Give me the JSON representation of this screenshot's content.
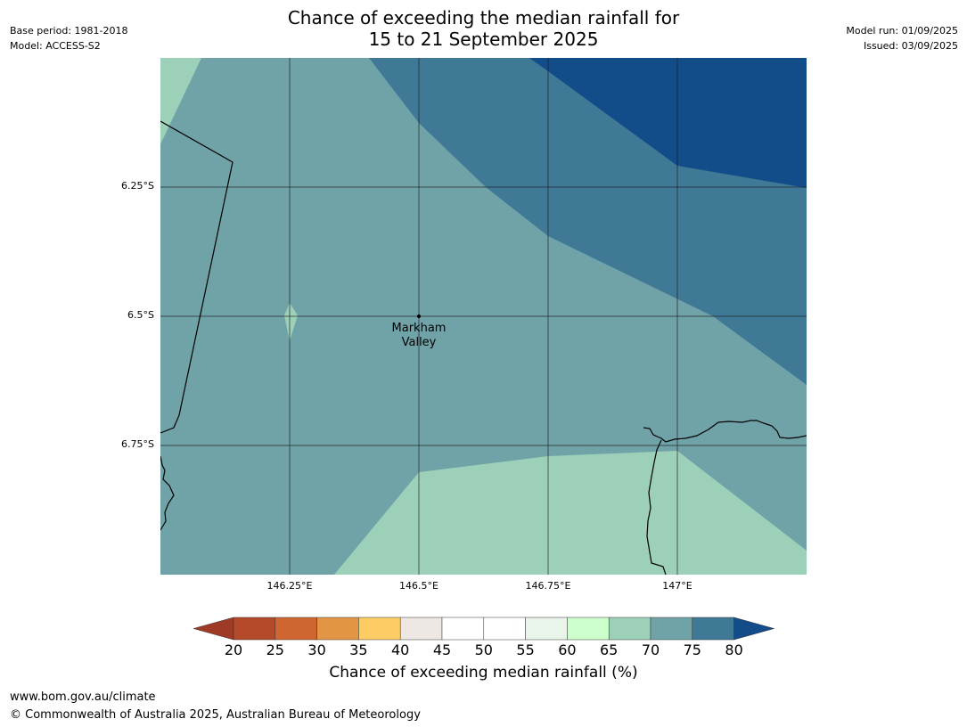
{
  "title_line1": "Chance of exceeding the median rainfall for",
  "title_line2": "15 to 21 September 2025",
  "meta_left": {
    "base_period": "Base period: 1981-2018",
    "model": "Model: ACCESS-S2"
  },
  "meta_right": {
    "model_run": "Model run: 01/09/2025",
    "issued": "Issued: 03/09/2025"
  },
  "lat_labels": [
    "6.25°S",
    "6.5°S",
    "6.75°S"
  ],
  "lon_labels": [
    "146.25°E",
    "146.5°E",
    "146.75°E",
    "147°E"
  ],
  "place": {
    "line1": "Markham",
    "line2": "Valley"
  },
  "colorbar": {
    "ticks": [
      "20",
      "25",
      "30",
      "35",
      "40",
      "45",
      "50",
      "55",
      "60",
      "65",
      "70",
      "75",
      "80"
    ],
    "colors": [
      "#9e3a26",
      "#b54a2a",
      "#cf6531",
      "#e39546",
      "#fecc65",
      "#ede8e3",
      "#ffffff",
      "#ffffff",
      "#e9f5ea",
      "#ccffcc",
      "#9dd0b9",
      "#6fa3a8",
      "#3f7996",
      "#134d89"
    ],
    "title": "Chance of exceeding median rainfall (%)"
  },
  "footer": {
    "url": "www.bom.gov.au/climate",
    "copyright": "© Commonwealth of Australia 2025, Australian Bureau of Meteorology"
  }
}
